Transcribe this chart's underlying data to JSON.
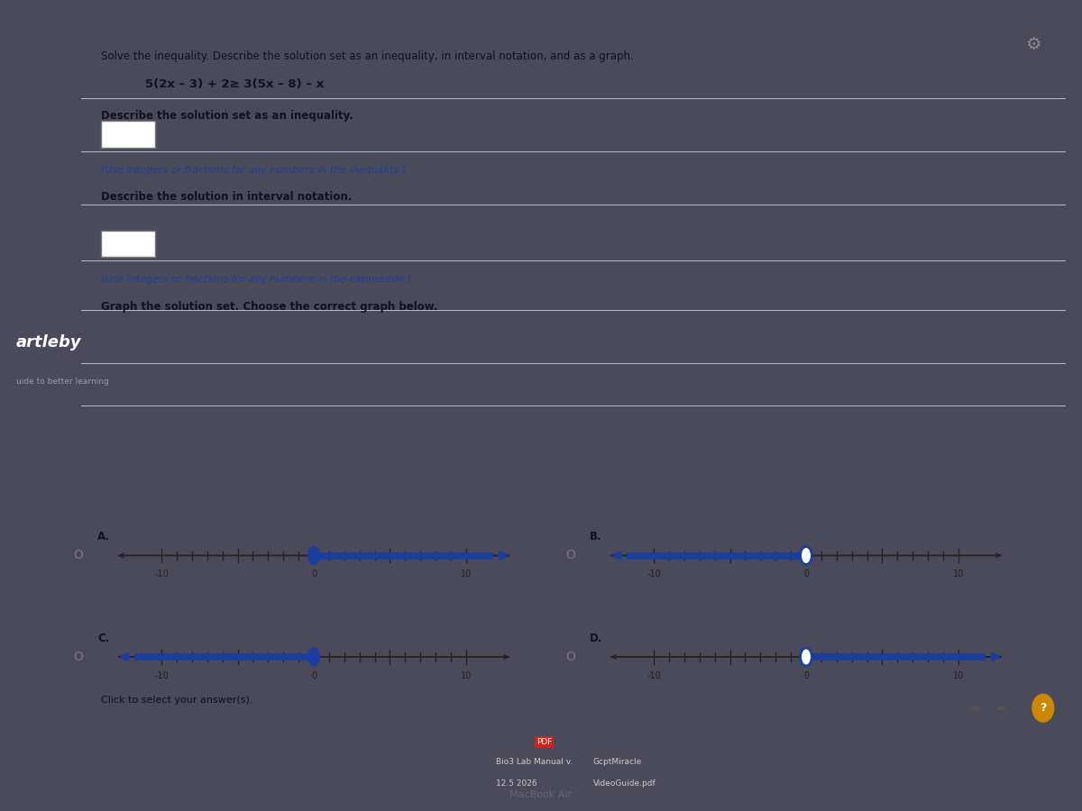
{
  "title_text": "Solve the inequality. Describe the solution set as an inequality, in interval notation, and as a graph.",
  "problem": "5(2x – 3) + 2≥ 3(5x – 8) – x",
  "label1": "Describe the solution set as an inequality.",
  "hint1": "(Use integers or fractions for any numbers in the inequality.)",
  "label2": "Describe the solution in interval notation.",
  "hint2": "(Use integers or fractions for any numbers in the expression.)",
  "label3": "Graph the solution set. Choose the correct graph below.",
  "outer_bg": "#4a4a5a",
  "panel_bg": "#cfd8e0",
  "white_bg": "#f0f4f7",
  "text_dark": "#111122",
  "blue_line": "#1a3fa0",
  "hint_color": "#1a3fa0",
  "bottom_bg": "#2a2a3a",
  "graphs": [
    {
      "label": "A.",
      "closed": true,
      "point": 0,
      "dir": "right"
    },
    {
      "label": "B.",
      "closed": false,
      "point": 0,
      "dir": "left"
    },
    {
      "label": "C.",
      "closed": true,
      "point": 0,
      "dir": "left"
    },
    {
      "label": "D.",
      "closed": false,
      "point": 0,
      "dir": "right"
    }
  ],
  "bottom_items": {
    "brand": "artleby",
    "brand_sub": "uide to better learning",
    "click_text": "Click to select your answer(s).",
    "pdf_label": "PDF",
    "pdf_line1": "Bio3 Lab Manual v.",
    "pdf_line2": "12.5 2026",
    "pdf_line3": "GcptMiracle",
    "pdf_line4": "VideoGuide.pdf",
    "macbook": "MacBook Air"
  }
}
